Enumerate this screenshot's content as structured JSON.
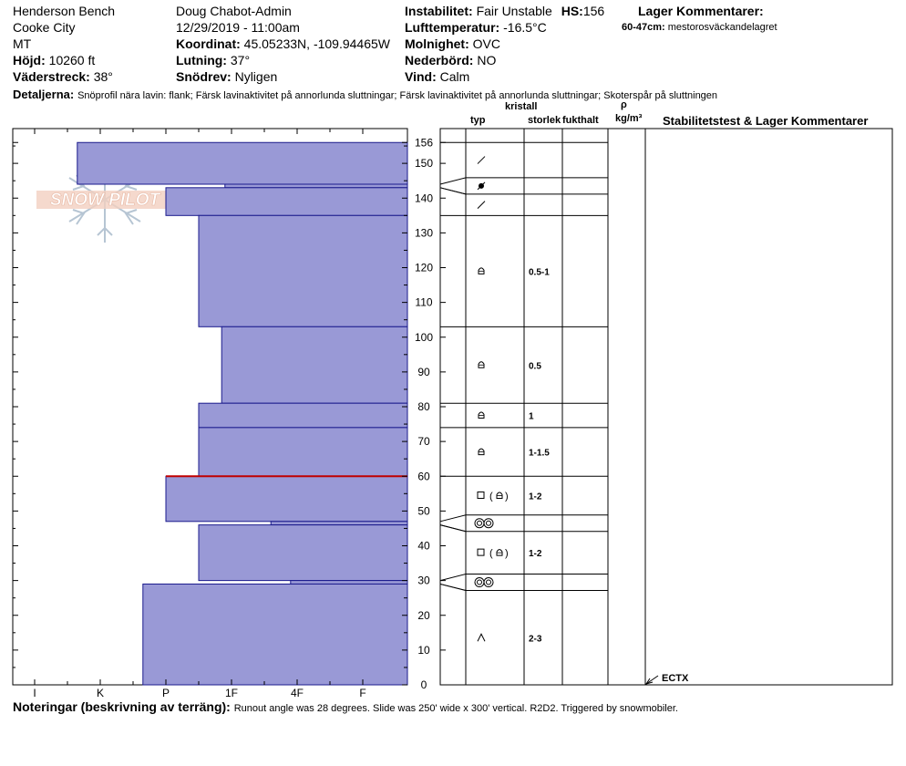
{
  "header": {
    "location": "Henderson Bench",
    "city": "Cooke City",
    "state": "MT",
    "elevation_label": "Höjd:",
    "elevation_value": "10260 ft",
    "aspect_label": "Väderstreck:",
    "aspect_value": "38°",
    "observer": "Doug Chabot-Admin",
    "datetime": "12/29/2019 - 11:00am",
    "coord_label": "Koordinat:",
    "coord_value": "45.05233N, -109.94465W",
    "slope_label": "Lutning:",
    "slope_value": "37°",
    "drift_label": "Snödrev:",
    "drift_value": "Nyligen",
    "instability_label": "Instabilitet:",
    "instability_value": "Fair Unstable",
    "hs_label": "HS:",
    "hs_value": "156",
    "airtemp_label": "Lufttemperatur:",
    "airtemp_value": "-16.5°C",
    "sky_label": "Molnighet:",
    "sky_value": "OVC",
    "precip_label": "Nederbörd:",
    "precip_value": "NO",
    "wind_label": "Vind:",
    "wind_value": "Calm",
    "layer_comments_label": "Lager Kommentarer:",
    "layer_comment_range": "60-47cm:",
    "layer_comment_text": "mestorosväckandelagret",
    "details_label": "Detaljerna:",
    "details_text": "Snöprofil nära lavin: flank; Färsk lavinaktivitet på annorlunda sluttningar; Färsk lavinaktivitet på annorlunda sluttningar; Skoterspår på sluttningen"
  },
  "columns": {
    "crystal": "kristall",
    "type": "typ",
    "size": "storlek",
    "moisture": "fukthalt",
    "rho": "ρ",
    "density_unit": "kg/m³",
    "stability": "Stabilitetstest & Lager Kommentarer"
  },
  "notes": {
    "label": "Noteringar (beskrivning av terräng):",
    "text": "Runout angle was 28 degrees. Slide was 250' wide x 300' vertical. R2D2. Triggered by snowmobiler."
  },
  "logo_text": "SNOW PILOT",
  "test_result": "ECTX",
  "colors": {
    "layer_fill": "#9999d6",
    "layer_stroke": "#1a1a8c",
    "weak_layer": "#c00000"
  },
  "chart_data": {
    "type": "bar",
    "orientation": "horizontal-hardness-profile",
    "hardness_ticks": [
      "I",
      "K",
      "P",
      "1F",
      "4F",
      "F"
    ],
    "ylim": [
      0,
      156
    ],
    "y_ticks": [
      0,
      10,
      20,
      30,
      40,
      50,
      60,
      70,
      80,
      90,
      100,
      110,
      120,
      130,
      140,
      150,
      156
    ],
    "layers": [
      {
        "top": 156,
        "bottom": 144,
        "hardness": 0.65,
        "grain": "slash",
        "size": ""
      },
      {
        "top": 144,
        "bottom": 143,
        "hardness": 2.9,
        "grain": "dot",
        "size": ""
      },
      {
        "top": 143,
        "bottom": 135,
        "hardness": 2.0,
        "grain": "slash",
        "size": ""
      },
      {
        "top": 135,
        "bottom": 103,
        "hardness": 2.5,
        "grain": "cup",
        "size": "0.5-1"
      },
      {
        "top": 103,
        "bottom": 81,
        "hardness": 2.85,
        "grain": "cup",
        "size": "0.5"
      },
      {
        "top": 81,
        "bottom": 74,
        "hardness": 2.5,
        "grain": "cup",
        "size": "1"
      },
      {
        "top": 74,
        "bottom": 60,
        "hardness": 2.5,
        "grain": "cup",
        "size": "1-1.5"
      },
      {
        "top": 60,
        "bottom": 47,
        "hardness": 2.0,
        "grain": "square-cup",
        "size": "1-2"
      },
      {
        "top": 47,
        "bottom": 46,
        "hardness": 3.6,
        "grain": "rings",
        "size": ""
      },
      {
        "top": 46,
        "bottom": 30,
        "hardness": 2.5,
        "grain": "square-cup",
        "size": "1-2"
      },
      {
        "top": 30,
        "bottom": 29,
        "hardness": 3.9,
        "grain": "rings",
        "size": ""
      },
      {
        "top": 29,
        "bottom": 0,
        "hardness": 1.65,
        "grain": "caret",
        "size": "2-3"
      }
    ],
    "weak_layer_depth": 60,
    "test_depth": 0
  }
}
